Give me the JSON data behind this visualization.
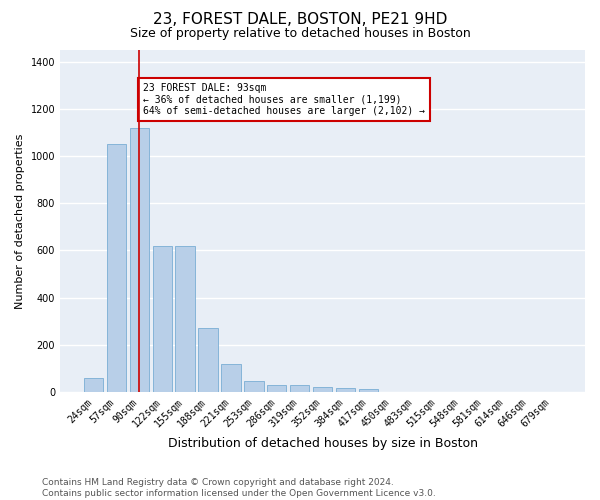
{
  "title": "23, FOREST DALE, BOSTON, PE21 9HD",
  "subtitle": "Size of property relative to detached houses in Boston",
  "xlabel": "Distribution of detached houses by size in Boston",
  "ylabel": "Number of detached properties",
  "categories": [
    "24sqm",
    "57sqm",
    "90sqm",
    "122sqm",
    "155sqm",
    "188sqm",
    "221sqm",
    "253sqm",
    "286sqm",
    "319sqm",
    "352sqm",
    "384sqm",
    "417sqm",
    "450sqm",
    "483sqm",
    "515sqm",
    "548sqm",
    "581sqm",
    "614sqm",
    "646sqm",
    "679sqm"
  ],
  "values": [
    60,
    1050,
    1120,
    620,
    620,
    270,
    120,
    45,
    30,
    30,
    20,
    15,
    10,
    0,
    0,
    0,
    0,
    0,
    0,
    0,
    0
  ],
  "bar_color": "#b8cfe8",
  "bar_edge_color": "#7aadd4",
  "vline_x_index": 2,
  "vline_color": "#cc0000",
  "annotation_title": "23 FOREST DALE: 93sqm",
  "annotation_line1": "← 36% of detached houses are smaller (1,199)",
  "annotation_line2": "64% of semi-detached houses are larger (2,102) →",
  "annotation_box_color": "#cc0000",
  "ylim": [
    0,
    1450
  ],
  "yticks": [
    0,
    200,
    400,
    600,
    800,
    1000,
    1200,
    1400
  ],
  "background_color": "#e8eef6",
  "grid_color": "#ffffff",
  "footer": "Contains HM Land Registry data © Crown copyright and database right 2024.\nContains public sector information licensed under the Open Government Licence v3.0.",
  "title_fontsize": 11,
  "subtitle_fontsize": 9,
  "xlabel_fontsize": 9,
  "ylabel_fontsize": 8,
  "tick_fontsize": 7,
  "footer_fontsize": 6.5
}
